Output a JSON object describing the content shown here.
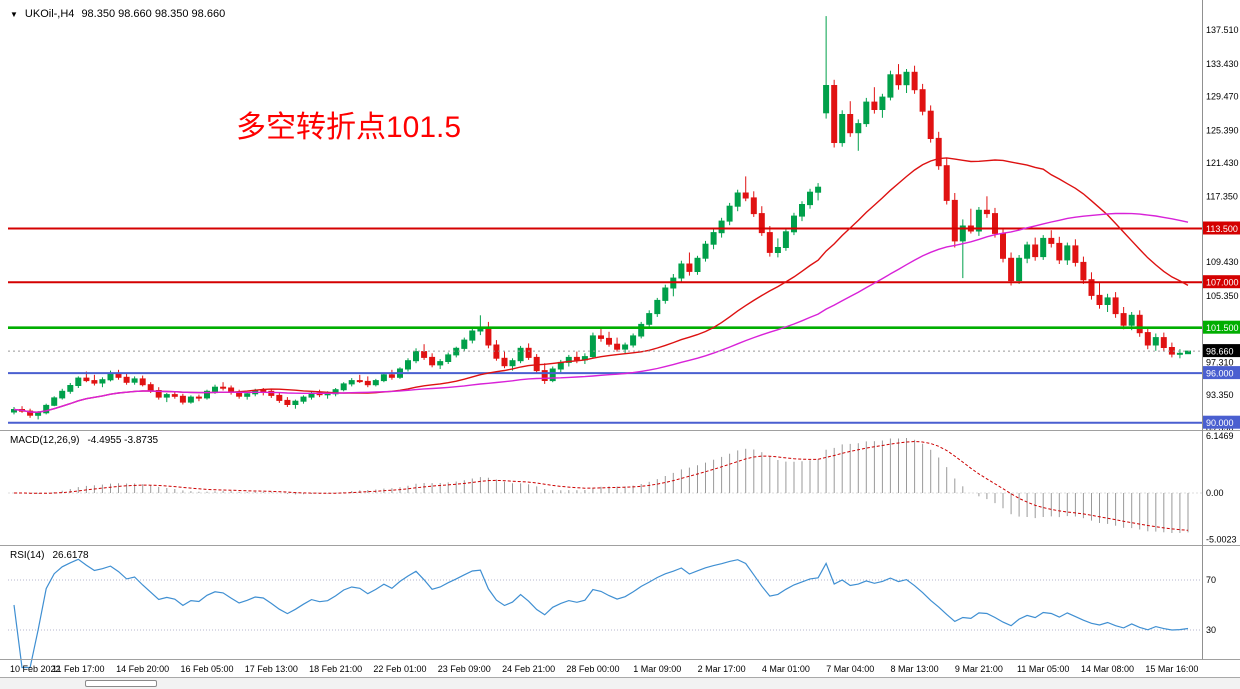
{
  "window": {
    "symbol": "UKOil-,H4",
    "ohlc_line": "98.350 98.660 98.350 98.660"
  },
  "icons": {
    "symbol_marker": "▼"
  },
  "annotation": {
    "text": "多空转折点101.5",
    "color": "#fe0000"
  },
  "x_axis": {
    "bars_per_label": 8,
    "labels": [
      "10 Feb 2022",
      "11 Feb 17:00",
      "14 Feb 20:00",
      "16 Feb 05:00",
      "17 Feb 13:00",
      "18 Feb 21:00",
      "22 Feb 01:00",
      "23 Feb 09:00",
      "24 Feb 21:00",
      "28 Feb 00:00",
      "1 Mar 09:00",
      "2 Mar 17:00",
      "4 Mar 01:00",
      "7 Mar 04:00",
      "8 Mar 13:00",
      "9 Mar 21:00",
      "11 Mar 05:00",
      "14 Mar 08:00",
      "15 Mar 16:00"
    ]
  },
  "chart_data": [
    {
      "type": "candlestick",
      "title": "UKOil-,H4",
      "price_range": [
        89.36,
        139.7
      ],
      "y_ticks": [
        137.51,
        133.43,
        129.47,
        125.39,
        121.43,
        117.35,
        109.43,
        105.35,
        97.31,
        93.35,
        89.39
      ],
      "levels": [
        {
          "value": 113.5,
          "label": "113.500",
          "color": "#d40000"
        },
        {
          "value": 107.0,
          "label": "107.000",
          "color": "#d40000"
        },
        {
          "value": 101.5,
          "label": "101.500",
          "color": "#00ae00"
        },
        {
          "value": 96.0,
          "label": "96.000",
          "color": "#4a5fd0"
        },
        {
          "value": 90.0,
          "label": "90.000",
          "color": "#4a5fd0"
        }
      ],
      "current_price": {
        "value": 98.66,
        "label": "98.660",
        "bg": "#000000"
      },
      "up_color": "#00a04a",
      "down_color": "#e01212",
      "ma": [
        {
          "period": 28,
          "color": "#dd1111",
          "name": "ma-fast"
        },
        {
          "period": 60,
          "color": "#d822d8",
          "name": "ma-slow"
        }
      ],
      "candles": [
        [
          91.3,
          91.9,
          91.0,
          91.6
        ],
        [
          91.6,
          92.0,
          91.2,
          91.4
        ],
        [
          91.4,
          91.7,
          90.6,
          90.9
        ],
        [
          90.9,
          91.4,
          90.4,
          91.2
        ],
        [
          91.2,
          92.3,
          91.0,
          92.1
        ],
        [
          92.1,
          93.2,
          92.0,
          93.0
        ],
        [
          93.0,
          94.1,
          92.8,
          93.8
        ],
        [
          93.8,
          94.8,
          93.5,
          94.5
        ],
        [
          94.5,
          95.6,
          94.2,
          95.4
        ],
        [
          95.4,
          96.2,
          94.9,
          95.1
        ],
        [
          95.1,
          95.8,
          94.5,
          94.8
        ],
        [
          94.8,
          95.5,
          94.3,
          95.2
        ],
        [
          95.2,
          96.3,
          95.0,
          95.9
        ],
        [
          95.9,
          96.4,
          95.2,
          95.5
        ],
        [
          95.5,
          95.9,
          94.6,
          94.9
        ],
        [
          94.9,
          95.6,
          94.6,
          95.3
        ],
        [
          95.3,
          95.7,
          94.4,
          94.6
        ],
        [
          94.6,
          94.9,
          93.6,
          93.9
        ],
        [
          93.9,
          94.3,
          92.8,
          93.1
        ],
        [
          93.1,
          93.6,
          92.5,
          93.4
        ],
        [
          93.4,
          93.8,
          92.9,
          93.2
        ],
        [
          93.2,
          93.5,
          92.2,
          92.5
        ],
        [
          92.5,
          93.3,
          92.3,
          93.1
        ],
        [
          93.1,
          93.4,
          92.6,
          93.0
        ],
        [
          93.0,
          94.0,
          92.8,
          93.8
        ],
        [
          93.8,
          94.6,
          93.5,
          94.3
        ],
        [
          94.3,
          94.9,
          93.9,
          94.2
        ],
        [
          94.2,
          94.5,
          93.4,
          93.7
        ],
        [
          93.7,
          94.0,
          92.9,
          93.2
        ],
        [
          93.2,
          93.7,
          92.8,
          93.5
        ],
        [
          93.5,
          94.1,
          93.2,
          93.9
        ],
        [
          93.9,
          94.2,
          93.3,
          93.8
        ],
        [
          93.8,
          94.1,
          93.0,
          93.3
        ],
        [
          93.3,
          93.6,
          92.4,
          92.7
        ],
        [
          92.7,
          93.1,
          91.9,
          92.2
        ],
        [
          92.2,
          92.8,
          91.7,
          92.6
        ],
        [
          92.6,
          93.3,
          92.3,
          93.1
        ],
        [
          93.1,
          93.8,
          92.8,
          93.6
        ],
        [
          93.6,
          94.0,
          93.1,
          93.4
        ],
        [
          93.4,
          93.8,
          92.9,
          93.5
        ],
        [
          93.5,
          94.2,
          93.2,
          94.0
        ],
        [
          94.0,
          94.9,
          93.8,
          94.7
        ],
        [
          94.7,
          95.4,
          94.4,
          95.1
        ],
        [
          95.1,
          95.8,
          94.8,
          95.0
        ],
        [
          95.0,
          95.6,
          94.3,
          94.6
        ],
        [
          94.6,
          95.3,
          94.4,
          95.1
        ],
        [
          95.1,
          96.0,
          94.9,
          95.8
        ],
        [
          95.8,
          96.4,
          95.2,
          95.5
        ],
        [
          95.5,
          96.7,
          95.3,
          96.5
        ],
        [
          96.5,
          97.8,
          96.2,
          97.5
        ],
        [
          97.5,
          99.0,
          97.2,
          98.6
        ],
        [
          98.6,
          99.5,
          97.6,
          97.9
        ],
        [
          97.9,
          98.4,
          96.7,
          97.0
        ],
        [
          97.0,
          97.7,
          96.5,
          97.4
        ],
        [
          97.4,
          98.5,
          97.1,
          98.2
        ],
        [
          98.2,
          99.2,
          97.9,
          99.0
        ],
        [
          99.0,
          100.3,
          98.7,
          100.0
        ],
        [
          100.0,
          101.5,
          99.6,
          101.1
        ],
        [
          101.1,
          103.0,
          100.6,
          101.4
        ],
        [
          101.4,
          102.2,
          99.0,
          99.4
        ],
        [
          99.4,
          100.0,
          97.5,
          97.8
        ],
        [
          97.8,
          98.6,
          96.6,
          96.9
        ],
        [
          96.9,
          97.8,
          96.3,
          97.5
        ],
        [
          97.5,
          99.3,
          97.2,
          99.0
        ],
        [
          99.0,
          99.6,
          97.6,
          97.9
        ],
        [
          97.9,
          98.3,
          95.9,
          96.3
        ],
        [
          96.3,
          97.2,
          94.7,
          95.1
        ],
        [
          95.1,
          96.8,
          94.9,
          96.5
        ],
        [
          96.5,
          97.6,
          96.1,
          97.3
        ],
        [
          97.3,
          98.2,
          96.8,
          97.9
        ],
        [
          97.9,
          98.6,
          97.2,
          97.6
        ],
        [
          97.6,
          98.4,
          97.1,
          98.0
        ],
        [
          98.0,
          100.9,
          97.8,
          100.5
        ],
        [
          100.5,
          101.5,
          99.8,
          100.2
        ],
        [
          100.2,
          101.0,
          99.2,
          99.5
        ],
        [
          99.5,
          100.3,
          98.6,
          98.9
        ],
        [
          98.9,
          99.7,
          98.4,
          99.4
        ],
        [
          99.4,
          100.8,
          99.1,
          100.5
        ],
        [
          100.5,
          102.2,
          100.2,
          101.9
        ],
        [
          101.9,
          103.6,
          101.5,
          103.2
        ],
        [
          103.2,
          105.1,
          102.8,
          104.8
        ],
        [
          104.8,
          106.7,
          104.4,
          106.3
        ],
        [
          106.3,
          108.0,
          105.3,
          107.5
        ],
        [
          107.5,
          109.6,
          107.0,
          109.2
        ],
        [
          109.2,
          110.6,
          107.8,
          108.3
        ],
        [
          108.3,
          110.2,
          107.9,
          109.9
        ],
        [
          109.9,
          112.0,
          109.5,
          111.6
        ],
        [
          111.6,
          113.4,
          111.0,
          113.0
        ],
        [
          113.0,
          114.8,
          112.4,
          114.4
        ],
        [
          114.4,
          116.6,
          113.9,
          116.2
        ],
        [
          116.2,
          118.2,
          115.6,
          117.8
        ],
        [
          117.8,
          119.8,
          116.8,
          117.2
        ],
        [
          117.2,
          118.0,
          114.9,
          115.3
        ],
        [
          115.3,
          116.2,
          112.6,
          113.0
        ],
        [
          113.0,
          113.8,
          110.1,
          110.6
        ],
        [
          110.6,
          112.3,
          110.0,
          111.2
        ],
        [
          111.2,
          113.5,
          110.8,
          113.1
        ],
        [
          113.1,
          115.4,
          112.7,
          115.0
        ],
        [
          115.0,
          116.8,
          114.4,
          116.4
        ],
        [
          116.4,
          118.3,
          115.9,
          117.9
        ],
        [
          117.9,
          119.0,
          116.9,
          118.5
        ],
        [
          127.5,
          139.2,
          126.8,
          130.8
        ],
        [
          130.8,
          131.5,
          123.3,
          123.9
        ],
        [
          123.9,
          127.8,
          123.4,
          127.3
        ],
        [
          127.3,
          128.9,
          124.6,
          125.1
        ],
        [
          125.1,
          126.7,
          122.9,
          126.2
        ],
        [
          126.2,
          129.3,
          125.8,
          128.8
        ],
        [
          128.8,
          130.6,
          127.4,
          127.9
        ],
        [
          127.9,
          129.8,
          126.9,
          129.4
        ],
        [
          129.4,
          132.6,
          129.0,
          132.1
        ],
        [
          132.1,
          133.4,
          130.3,
          130.9
        ],
        [
          130.9,
          132.8,
          129.9,
          132.4
        ],
        [
          132.4,
          133.2,
          129.8,
          130.3
        ],
        [
          130.3,
          131.0,
          127.2,
          127.7
        ],
        [
          127.7,
          128.4,
          123.9,
          124.4
        ],
        [
          124.4,
          125.2,
          120.6,
          121.1
        ],
        [
          121.1,
          122.0,
          116.4,
          116.9
        ],
        [
          116.9,
          117.8,
          111.2,
          112.0
        ],
        [
          112.0,
          114.6,
          107.5,
          113.8
        ],
        [
          113.8,
          115.9,
          112.9,
          113.2
        ],
        [
          113.2,
          116.1,
          112.6,
          115.7
        ],
        [
          115.7,
          117.4,
          114.8,
          115.3
        ],
        [
          115.3,
          116.0,
          112.4,
          112.9
        ],
        [
          112.9,
          113.6,
          109.4,
          109.9
        ],
        [
          109.9,
          110.6,
          106.6,
          107.2
        ],
        [
          107.2,
          110.3,
          106.8,
          109.9
        ],
        [
          109.9,
          111.9,
          109.3,
          111.5
        ],
        [
          111.5,
          112.4,
          109.6,
          110.1
        ],
        [
          110.1,
          112.7,
          109.7,
          112.3
        ],
        [
          112.3,
          113.3,
          111.2,
          111.7
        ],
        [
          111.7,
          112.5,
          109.2,
          109.7
        ],
        [
          109.7,
          111.8,
          109.1,
          111.4
        ],
        [
          111.4,
          112.2,
          108.9,
          109.4
        ],
        [
          109.4,
          110.1,
          106.8,
          107.3
        ],
        [
          107.3,
          108.2,
          104.9,
          105.4
        ],
        [
          105.4,
          106.9,
          103.8,
          104.3
        ],
        [
          104.3,
          105.6,
          103.4,
          105.1
        ],
        [
          105.1,
          105.8,
          102.7,
          103.2
        ],
        [
          103.2,
          104.0,
          101.3,
          101.8
        ],
        [
          101.8,
          103.4,
          101.2,
          103.0
        ],
        [
          103.0,
          103.6,
          100.4,
          100.9
        ],
        [
          100.9,
          101.6,
          98.9,
          99.4
        ],
        [
          99.4,
          100.8,
          98.7,
          100.3
        ],
        [
          100.3,
          100.9,
          98.6,
          99.1
        ],
        [
          99.1,
          99.7,
          97.9,
          98.3
        ],
        [
          98.3,
          98.9,
          97.8,
          98.4
        ],
        [
          98.35,
          98.66,
          98.35,
          98.66
        ]
      ]
    },
    {
      "type": "macd",
      "label": "MACD(12,26,9)",
      "values_text": "-4.4955 -3.8735",
      "params": [
        12,
        26,
        9
      ],
      "y_ticks": [
        {
          "v": 6.1469,
          "t": "6.1469"
        },
        {
          "v": 0,
          "t": "0.00"
        },
        {
          "v": -5.0023,
          "t": "-5.0023"
        }
      ],
      "histogram_color": "#9a9a9a",
      "signal_color": "#cc0000"
    },
    {
      "type": "rsi",
      "label": "RSI(14)",
      "value_text": "26.6178",
      "period": 14,
      "levels": [
        "70",
        "30"
      ],
      "level_values": [
        70,
        30
      ],
      "line_color": "#3f8fd2"
    }
  ]
}
